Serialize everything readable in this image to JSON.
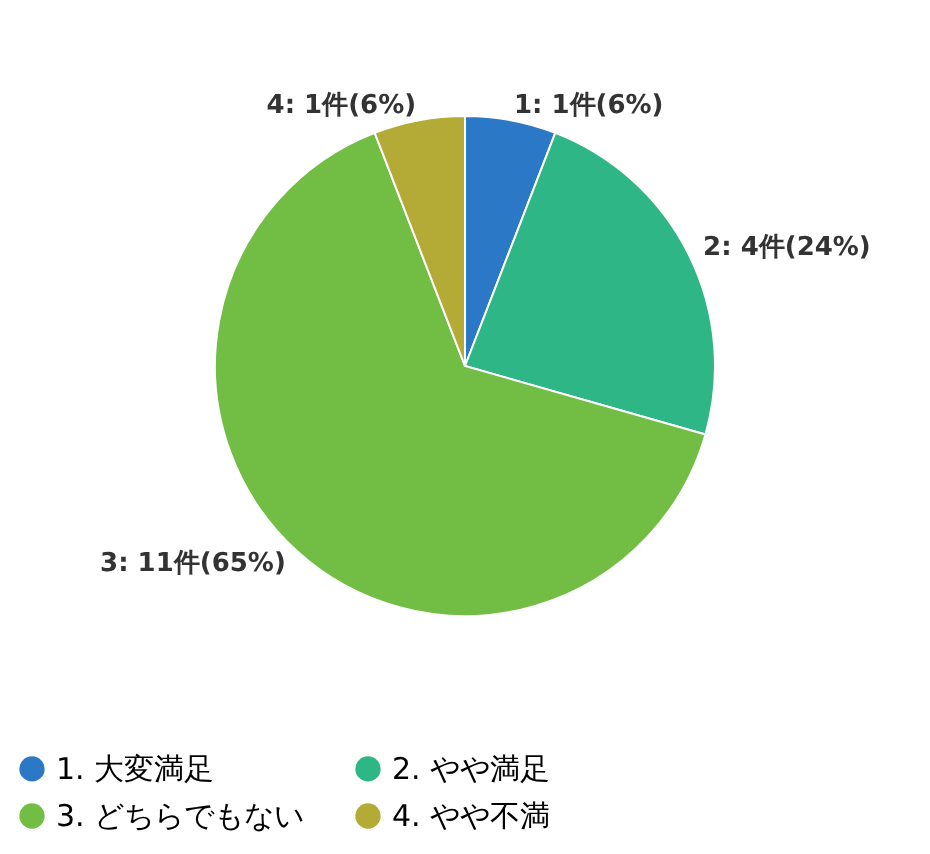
{
  "chart_data": {
    "type": "pie",
    "categories": [
      "1. 大変満足",
      "2. やや満足",
      "3. どちらでもない",
      "4. やや不満"
    ],
    "values": [
      1,
      4,
      11,
      1
    ],
    "colors": [
      "#2a78c6",
      "#2eb686",
      "#72be45",
      "#b4aa36"
    ],
    "value_labels": [
      "1: 1件(6%)",
      "2: 4件(24%)",
      "3: 11件(65%)",
      "4: 1件(6%)"
    ],
    "legend": "bottom"
  }
}
